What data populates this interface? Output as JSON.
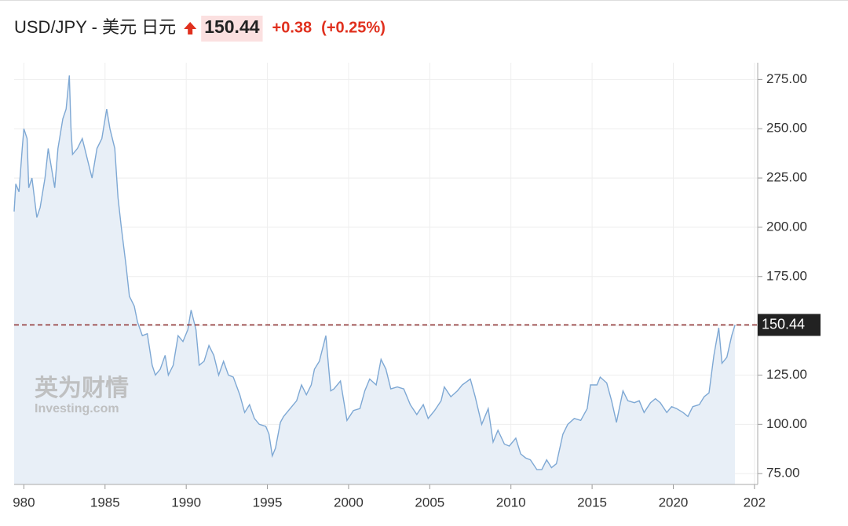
{
  "chart_data": {
    "type": "area",
    "header": {
      "symbol": "USD/JPY - 美元 日元",
      "price": 150.44,
      "change": "+0.38",
      "change_percent": "(+0.25%)"
    },
    "watermark": {
      "cn": "英为财情",
      "en": "Investing.com"
    },
    "xlim": [
      1979.4,
      2025.2
    ],
    "xticks": [
      {
        "value": 1980,
        "label": "980"
      },
      1985,
      1990,
      1995,
      2000,
      2005,
      2010,
      2015,
      2020,
      {
        "value": 2025,
        "label": "202"
      }
    ],
    "ylim": [
      69.5,
      283.5
    ],
    "yticks": [
      {
        "value": 75,
        "label": "75.00"
      },
      {
        "value": 100,
        "label": "100.00"
      },
      {
        "value": 125,
        "label": "125.00"
      },
      {
        "value": 150,
        "label": "150.00"
      },
      {
        "value": 175,
        "label": "175.00"
      },
      {
        "value": 200,
        "label": "200.00"
      },
      {
        "value": 225,
        "label": "225.00"
      },
      {
        "value": 250,
        "label": "250.00"
      },
      {
        "value": 275,
        "label": "275.00"
      }
    ],
    "grid": true,
    "reference_line": {
      "value": 150.44,
      "color": "#8b2a2a"
    },
    "series": [
      {
        "name": "USD/JPY",
        "color": "#7ea8d4",
        "fill": "#e8eff7",
        "x": [
          1979.4,
          1979.5,
          1979.7,
          1979.9,
          1980.0,
          1980.2,
          1980.3,
          1980.5,
          1980.8,
          1981.0,
          1981.3,
          1981.5,
          1981.7,
          1981.9,
          1982.1,
          1982.4,
          1982.6,
          1982.8,
          1982.9,
          1983.0,
          1983.3,
          1983.6,
          1983.9,
          1984.2,
          1984.5,
          1984.8,
          1985.1,
          1985.3,
          1985.6,
          1985.8,
          1986.0,
          1986.3,
          1986.5,
          1986.8,
          1987.0,
          1987.3,
          1987.6,
          1987.9,
          1988.1,
          1988.4,
          1988.7,
          1988.9,
          1989.2,
          1989.5,
          1989.8,
          1990.1,
          1990.3,
          1990.6,
          1990.8,
          1991.1,
          1991.4,
          1991.7,
          1992.0,
          1992.3,
          1992.6,
          1992.9,
          1993.3,
          1993.6,
          1993.9,
          1994.2,
          1994.5,
          1994.9,
          1995.1,
          1995.3,
          1995.5,
          1995.8,
          1996.0,
          1996.4,
          1996.8,
          1997.1,
          1997.4,
          1997.7,
          1997.9,
          1998.2,
          1998.6,
          1998.9,
          1999.1,
          1999.5,
          1999.9,
          2000.3,
          2000.7,
          2001.0,
          2001.3,
          2001.7,
          2002.0,
          2002.3,
          2002.6,
          2003.0,
          2003.4,
          2003.8,
          2004.2,
          2004.6,
          2004.9,
          2005.3,
          2005.7,
          2005.9,
          2006.3,
          2006.7,
          2007.0,
          2007.5,
          2007.8,
          2008.2,
          2008.6,
          2008.9,
          2009.2,
          2009.6,
          2009.9,
          2010.3,
          2010.6,
          2010.9,
          2011.2,
          2011.6,
          2011.9,
          2012.2,
          2012.5,
          2012.8,
          2013.2,
          2013.5,
          2013.9,
          2014.3,
          2014.7,
          2014.9,
          2015.3,
          2015.5,
          2015.9,
          2016.2,
          2016.5,
          2016.9,
          2017.2,
          2017.6,
          2017.9,
          2018.2,
          2018.6,
          2018.9,
          2019.2,
          2019.6,
          2019.9,
          2020.2,
          2020.6,
          2020.9,
          2021.2,
          2021.6,
          2021.9,
          2022.2,
          2022.5,
          2022.8,
          2023.0,
          2023.3,
          2023.6,
          2023.8
        ],
        "values": [
          208,
          222,
          218,
          240,
          250,
          245,
          220,
          225,
          205,
          210,
          225,
          240,
          230,
          220,
          240,
          255,
          260,
          277,
          250,
          237,
          240,
          245,
          235,
          225,
          240,
          245,
          260,
          250,
          240,
          215,
          200,
          180,
          165,
          160,
          152,
          145,
          146,
          130,
          125,
          128,
          135,
          125,
          130,
          145,
          142,
          148,
          158,
          148,
          130,
          132,
          140,
          135,
          125,
          132,
          125,
          124,
          115,
          106,
          110,
          103,
          100,
          99,
          95,
          84,
          88,
          101,
          104,
          108,
          112,
          120,
          115,
          120,
          128,
          132,
          145,
          117,
          118,
          122,
          102,
          107,
          108,
          117,
          123,
          120,
          133,
          128,
          118,
          119,
          118,
          110,
          105,
          110,
          103,
          107,
          112,
          119,
          114,
          117,
          120,
          123,
          114,
          100,
          108,
          91,
          97,
          90,
          89,
          93,
          85,
          83,
          82,
          77,
          77,
          82,
          78,
          80,
          95,
          100,
          103,
          102,
          108,
          120,
          120,
          124,
          121,
          112,
          101,
          117,
          112,
          111,
          112,
          106,
          111,
          113,
          111,
          106,
          109,
          108,
          106,
          104,
          109,
          110,
          114,
          116,
          135,
          149,
          131,
          134,
          145,
          150.44
        ]
      }
    ]
  }
}
